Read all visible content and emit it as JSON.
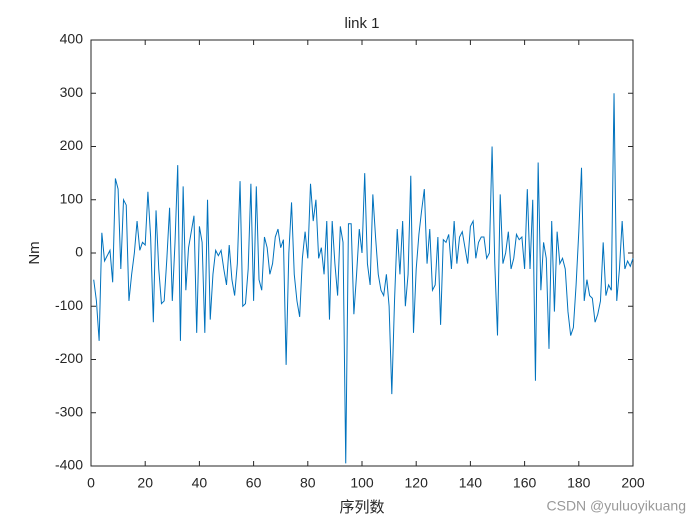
{
  "chart_data": {
    "type": "line",
    "title": "link 1",
    "xlabel": "序列数",
    "ylabel": "Nm",
    "watermark": "CSDN @yuluoyikuang",
    "x": [
      1,
      2,
      3,
      4,
      5,
      6,
      7,
      8,
      9,
      10,
      11,
      12,
      13,
      14,
      15,
      16,
      17,
      18,
      19,
      20,
      21,
      22,
      23,
      24,
      25,
      26,
      27,
      28,
      29,
      30,
      31,
      32,
      33,
      34,
      35,
      36,
      37,
      38,
      39,
      40,
      41,
      42,
      43,
      44,
      45,
      46,
      47,
      48,
      49,
      50,
      51,
      52,
      53,
      54,
      55,
      56,
      57,
      58,
      59,
      60,
      61,
      62,
      63,
      64,
      65,
      66,
      67,
      68,
      69,
      70,
      71,
      72,
      73,
      74,
      75,
      76,
      77,
      78,
      79,
      80,
      81,
      82,
      83,
      84,
      85,
      86,
      87,
      88,
      89,
      90,
      91,
      92,
      93,
      94,
      95,
      96,
      97,
      98,
      99,
      100,
      101,
      102,
      103,
      104,
      105,
      106,
      107,
      108,
      109,
      110,
      111,
      112,
      113,
      114,
      115,
      116,
      117,
      118,
      119,
      120,
      121,
      122,
      123,
      124,
      125,
      126,
      127,
      128,
      129,
      130,
      131,
      132,
      133,
      134,
      135,
      136,
      137,
      138,
      139,
      140,
      141,
      142,
      143,
      144,
      145,
      146,
      147,
      148,
      149,
      150,
      151,
      152,
      153,
      154,
      155,
      156,
      157,
      158,
      159,
      160,
      161,
      162,
      163,
      164,
      165,
      166,
      167,
      168,
      169,
      170,
      171,
      172,
      173,
      174,
      175,
      176,
      177,
      178,
      179,
      180,
      181,
      182,
      183,
      184,
      185,
      186,
      187,
      188,
      189,
      190,
      191,
      192,
      193,
      194,
      195,
      196,
      197,
      198,
      199,
      200
    ],
    "series": [
      {
        "name": "link 1",
        "color": "#0072bd",
        "values": [
          -50,
          -90,
          -165,
          38,
          -15,
          -5,
          5,
          -55,
          140,
          120,
          -30,
          100,
          90,
          -90,
          -40,
          0,
          60,
          5,
          20,
          15,
          115,
          30,
          -130,
          80,
          -30,
          -95,
          -90,
          -10,
          85,
          -90,
          20,
          165,
          -165,
          125,
          -70,
          10,
          40,
          70,
          -150,
          50,
          20,
          -150,
          100,
          -125,
          -40,
          5,
          -5,
          5,
          -30,
          -60,
          15,
          -50,
          -80,
          -20,
          135,
          -100,
          -95,
          -30,
          130,
          -90,
          125,
          -50,
          -70,
          30,
          10,
          -40,
          -20,
          30,
          45,
          10,
          25,
          -210,
          0,
          95,
          -40,
          -90,
          -120,
          -10,
          40,
          -10,
          130,
          60,
          100,
          -10,
          10,
          -40,
          60,
          -125,
          60,
          -20,
          -80,
          50,
          20,
          -395,
          55,
          55,
          -115,
          -40,
          45,
          0,
          150,
          -20,
          -60,
          110,
          30,
          -40,
          -70,
          -80,
          -40,
          -100,
          -265,
          -90,
          45,
          -40,
          60,
          -100,
          -40,
          145,
          -150,
          -30,
          35,
          80,
          120,
          -20,
          45,
          -70,
          -60,
          30,
          -135,
          25,
          20,
          35,
          -30,
          60,
          -20,
          30,
          40,
          10,
          -20,
          50,
          60,
          -10,
          20,
          30,
          30,
          -10,
          0,
          200,
          -20,
          -155,
          110,
          -20,
          0,
          40,
          -30,
          -10,
          35,
          25,
          30,
          -30,
          120,
          -30,
          100,
          -240,
          170,
          -70,
          20,
          -10,
          -180,
          60,
          -110,
          40,
          -20,
          -10,
          -30,
          -110,
          -155,
          -140,
          -60,
          40,
          160,
          -90,
          -50,
          -80,
          -85,
          -130,
          -115,
          -90,
          20,
          -80,
          -60,
          -70,
          300,
          -90,
          -30,
          60,
          -30,
          -15,
          -25,
          -10
        ]
      }
    ],
    "xlim": [
      0,
      200
    ],
    "xticks": [
      0,
      20,
      40,
      60,
      80,
      100,
      120,
      140,
      160,
      180,
      200
    ],
    "ylim": [
      -400,
      400
    ],
    "yticks": [
      -400,
      -300,
      -200,
      -100,
      0,
      100,
      200,
      300,
      400
    ]
  }
}
